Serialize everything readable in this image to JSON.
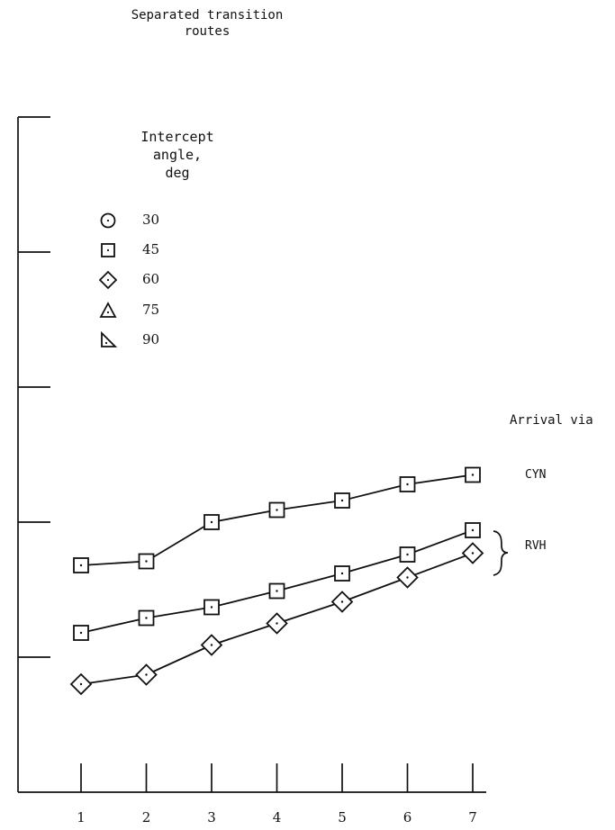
{
  "chart_data": {
    "type": "line",
    "title": "Separated transition\nroutes",
    "xlabel": "",
    "ylabel": "",
    "categories": [
      "1",
      "2",
      "3",
      "4",
      "5",
      "6",
      "7"
    ],
    "x": [
      1,
      2,
      3,
      4,
      5,
      6,
      7
    ],
    "ylim": [
      0,
      5
    ],
    "y_ticks": [
      1,
      2,
      3,
      4,
      5
    ],
    "y_tick_labels": [],
    "grid": false,
    "legend": {
      "title": "Intercept\nangle,\ndeg",
      "placement": "top-left",
      "entries": [
        {
          "label": "30",
          "marker": "circle"
        },
        {
          "label": "45",
          "marker": "square"
        },
        {
          "label": "60",
          "marker": "diamond"
        },
        {
          "label": "75",
          "marker": "triangle"
        },
        {
          "label": "90",
          "marker": "right-triangle"
        }
      ]
    },
    "series": [
      {
        "name": "45",
        "marker": "square",
        "arrival": "CYN",
        "values": [
          1.68,
          1.71,
          2.0,
          2.09,
          2.16,
          2.28,
          2.35
        ]
      },
      {
        "name": "45",
        "marker": "square",
        "arrival": "RVH",
        "values": [
          1.18,
          1.29,
          1.37,
          1.49,
          1.62,
          1.76,
          1.94
        ]
      },
      {
        "name": "60",
        "marker": "diamond",
        "arrival": "RVH",
        "values": [
          0.8,
          0.87,
          1.09,
          1.25,
          1.41,
          1.59,
          1.77
        ]
      }
    ],
    "annotations": {
      "title": "Arrival via",
      "labels": [
        {
          "text": "CYN",
          "series": [
            0
          ]
        },
        {
          "text": "RVH",
          "series": [
            1,
            2
          ],
          "bracket": true
        }
      ]
    }
  },
  "colors": {
    "ink": "#111111",
    "background": "#ffffff"
  }
}
